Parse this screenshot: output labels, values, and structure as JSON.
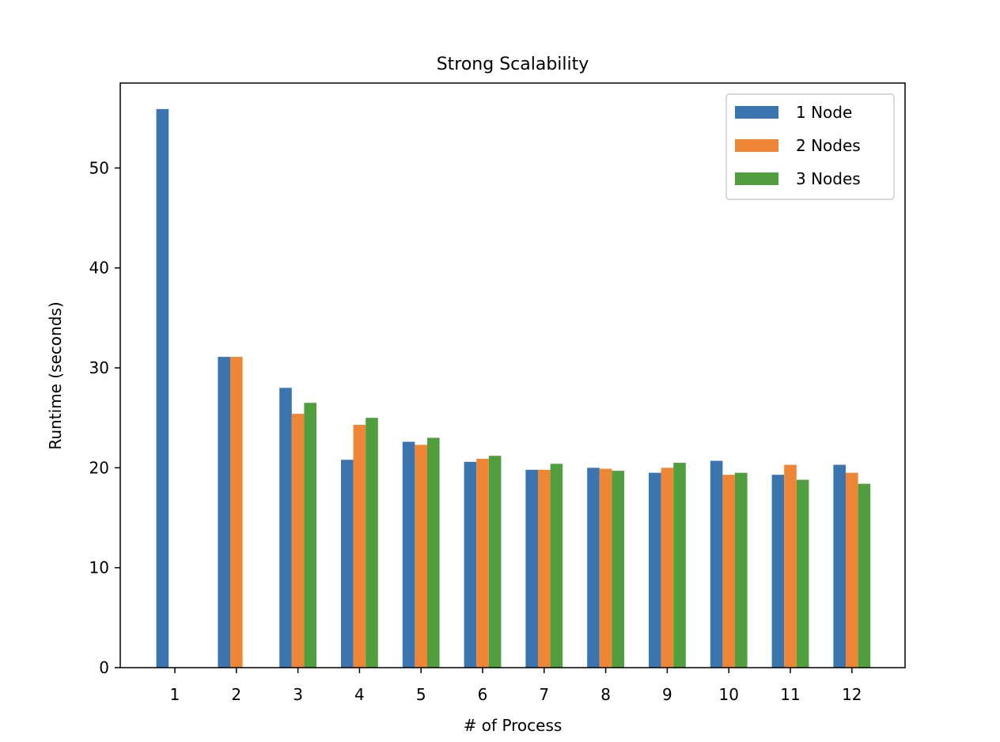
{
  "chart_data": {
    "type": "bar",
    "title": "Strong Scalability",
    "xlabel": "# of Process",
    "ylabel": "Runtime (seconds)",
    "categories": [
      "1",
      "2",
      "3",
      "4",
      "5",
      "6",
      "7",
      "8",
      "9",
      "10",
      "11",
      "12"
    ],
    "ylim": [
      0,
      58.5
    ],
    "yticks": [
      0,
      10,
      20,
      30,
      40,
      50
    ],
    "grid": false,
    "legend_position": "top-right",
    "series": [
      {
        "name": "1 Node",
        "color": "#3b75af",
        "values": [
          55.9,
          31.1,
          28.0,
          20.8,
          22.6,
          20.6,
          19.8,
          20.0,
          19.5,
          20.7,
          19.3,
          20.3
        ]
      },
      {
        "name": "2 Nodes",
        "color": "#ef8636",
        "values": [
          null,
          31.1,
          25.4,
          24.3,
          22.3,
          20.9,
          19.8,
          19.9,
          20.0,
          19.3,
          20.3,
          19.5
        ]
      },
      {
        "name": "3 Nodes",
        "color": "#519e3e",
        "values": [
          null,
          null,
          26.5,
          25.0,
          23.0,
          21.2,
          20.4,
          19.7,
          20.5,
          19.5,
          18.8,
          18.4
        ]
      }
    ]
  }
}
